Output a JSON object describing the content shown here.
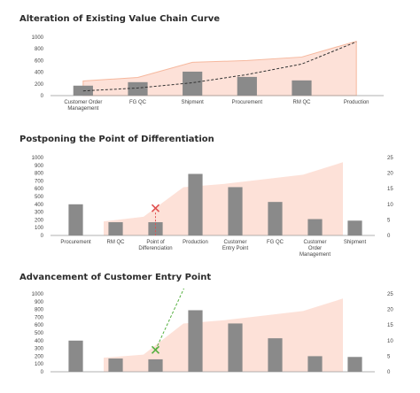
{
  "chart_data": [
    {
      "type": "bar",
      "title": "Alteration of Existing Value Chain Curve",
      "categories": [
        "Customer Order Management",
        "FG QC",
        "Shipment",
        "Procurement",
        "RM QC",
        "Production"
      ],
      "category_lines": [
        [
          "Customer Order",
          "Management"
        ],
        [
          "FG QC"
        ],
        [
          "Shipment"
        ],
        [
          "Procurement"
        ],
        [
          "RM QC"
        ],
        [
          "Production"
        ]
      ],
      "values": [
        170,
        230,
        410,
        320,
        260,
        null
      ],
      "area_values": [
        250,
        310,
        570,
        600,
        660,
        930
      ],
      "trend_values": [
        80,
        130,
        220,
        360,
        540,
        920
      ],
      "ylim": [
        0,
        1000
      ],
      "yticks": [
        0,
        200,
        400,
        600,
        800,
        1000
      ],
      "xlabel": "",
      "ylabel": ""
    },
    {
      "type": "bar",
      "title": "Postponing the Point of Differentiation",
      "categories": [
        "Procurement",
        "RM QC",
        "Point of Differenciation",
        "Production",
        "Customer Entry Point",
        "FG QC",
        "Customer Order Management",
        "Shipment"
      ],
      "category_lines": [
        [
          "Procurement"
        ],
        [
          "RM QC"
        ],
        [
          "Point of",
          "Differenciation"
        ],
        [
          "Production"
        ],
        [
          "Customer",
          "Entry Point"
        ],
        [
          "FG QC"
        ],
        [
          "Customer",
          "Order",
          "Management"
        ],
        [
          "Shipment"
        ]
      ],
      "values": [
        400,
        170,
        170,
        790,
        620,
        430,
        210,
        190
      ],
      "area_values_secondary": [
        null,
        4.5,
        6,
        15.5,
        16.5,
        18,
        19.5,
        23.5
      ],
      "ylim": [
        0,
        1000
      ],
      "yticks": [
        0,
        100,
        200,
        300,
        400,
        500,
        600,
        700,
        800,
        900,
        1000
      ],
      "y2lim": [
        0,
        25
      ],
      "y2ticks": [
        0,
        5,
        10,
        15,
        20,
        25
      ],
      "marker": {
        "symbol": "×",
        "category_index": 2,
        "value": 350,
        "color": "#e05050"
      }
    },
    {
      "type": "bar",
      "title": "Advancement of Customer Entry Point",
      "categories": [
        "",
        "",
        "",
        "",
        "",
        "",
        "",
        ""
      ],
      "values": [
        400,
        170,
        160,
        790,
        620,
        430,
        200,
        190
      ],
      "area_values_secondary": [
        null,
        4.5,
        5.5,
        15.5,
        16.5,
        18,
        19.5,
        23.5
      ],
      "ylim": [
        0,
        1000
      ],
      "yticks": [
        0,
        100,
        200,
        300,
        400,
        500,
        600,
        700,
        800,
        900,
        1000
      ],
      "y2lim": [
        0,
        25
      ],
      "y2ticks": [
        0,
        5,
        10,
        15,
        20,
        25
      ],
      "marker": {
        "symbol": "×",
        "category_index": 2,
        "value": 280,
        "color": "#55b040"
      }
    }
  ],
  "colors": {
    "bar": "#8a8a8a",
    "area_fill": "#fde1d8",
    "area_stroke": "#f6b89e",
    "trend_line": "#333333",
    "axis": "#999999",
    "red_marker": "#e05050",
    "green_marker": "#55b040"
  }
}
